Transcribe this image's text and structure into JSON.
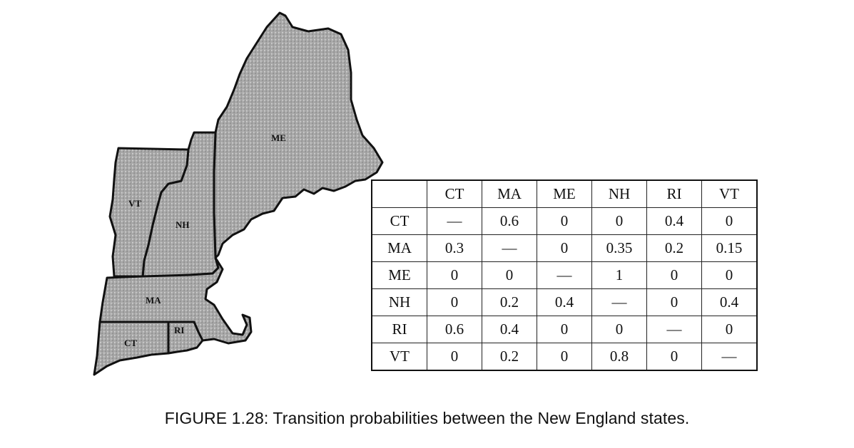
{
  "figure": {
    "caption": "FIGURE 1.28: Transition probabilities between the New England states.",
    "map_labels": {
      "ME": "ME",
      "VT": "VT",
      "NH": "NH",
      "MA": "MA",
      "CT": "CT",
      "RI": "RI"
    }
  },
  "chart_data": {
    "type": "table",
    "columns": [
      "CT",
      "MA",
      "ME",
      "NH",
      "RI",
      "VT"
    ],
    "rows": [
      {
        "label": "CT",
        "values": [
          "—",
          "0.6",
          "0",
          "0",
          "0.4",
          "0"
        ]
      },
      {
        "label": "MA",
        "values": [
          "0.3",
          "—",
          "0",
          "0.35",
          "0.2",
          "0.15"
        ]
      },
      {
        "label": "ME",
        "values": [
          "0",
          "0",
          "—",
          "1",
          "0",
          "0"
        ]
      },
      {
        "label": "NH",
        "values": [
          "0",
          "0.2",
          "0.4",
          "—",
          "0",
          "0.4"
        ]
      },
      {
        "label": "RI",
        "values": [
          "0.6",
          "0.4",
          "0",
          "0",
          "—",
          "0"
        ]
      },
      {
        "label": "VT",
        "values": [
          "0",
          "0.2",
          "0",
          "0.8",
          "0",
          "—"
        ]
      }
    ]
  }
}
